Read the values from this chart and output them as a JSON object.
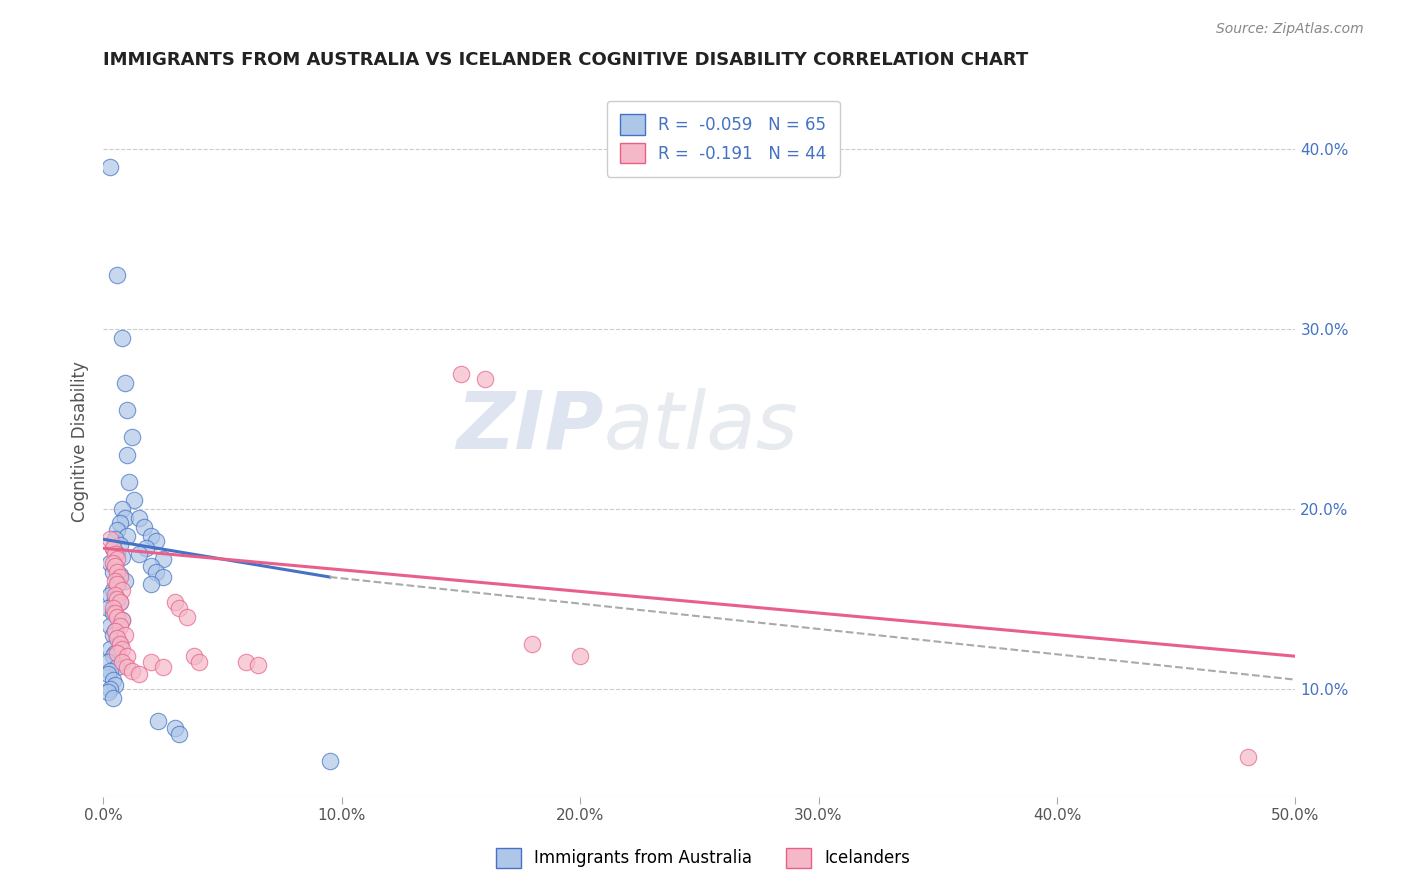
{
  "title": "IMMIGRANTS FROM AUSTRALIA VS ICELANDER COGNITIVE DISABILITY CORRELATION CHART",
  "source": "Source: ZipAtlas.com",
  "ylabel": "Cognitive Disability",
  "xlim": [
    0.0,
    0.5
  ],
  "ylim": [
    0.04,
    0.435
  ],
  "right_yticks": [
    0.1,
    0.2,
    0.3,
    0.4
  ],
  "right_yticklabels": [
    "10.0%",
    "20.0%",
    "30.0%",
    "40.0%"
  ],
  "xticks": [
    0.0,
    0.1,
    0.2,
    0.3,
    0.4,
    0.5
  ],
  "xticklabels": [
    "0.0%",
    "10.0%",
    "20.0%",
    "30.0%",
    "40.0%",
    "50.0%"
  ],
  "legend_r1": "R =  -0.059",
  "legend_n1": "N = 65",
  "legend_r2": "R =  -0.191",
  "legend_n2": "N = 44",
  "color_blue": "#aec6e8",
  "color_pink": "#f5b8c8",
  "line_blue": "#4472c4",
  "line_pink": "#e8608a",
  "line_dashed": "#aaaaaa",
  "watermark_zip": "ZIP",
  "watermark_atlas": "atlas",
  "blue_line_x": [
    0.0,
    0.095
  ],
  "blue_line_y": [
    0.183,
    0.162
  ],
  "pink_line_x": [
    0.0,
    0.5
  ],
  "pink_line_y": [
    0.178,
    0.118
  ],
  "dash_line_x": [
    0.095,
    0.5
  ],
  "dash_line_y": [
    0.162,
    0.105
  ],
  "scatter_blue": [
    [
      0.003,
      0.39
    ],
    [
      0.006,
      0.33
    ],
    [
      0.008,
      0.295
    ],
    [
      0.009,
      0.27
    ],
    [
      0.01,
      0.255
    ],
    [
      0.012,
      0.24
    ],
    [
      0.01,
      0.23
    ],
    [
      0.011,
      0.215
    ],
    [
      0.013,
      0.205
    ],
    [
      0.008,
      0.2
    ],
    [
      0.009,
      0.195
    ],
    [
      0.007,
      0.192
    ],
    [
      0.006,
      0.188
    ],
    [
      0.01,
      0.185
    ],
    [
      0.005,
      0.183
    ],
    [
      0.007,
      0.18
    ],
    [
      0.004,
      0.178
    ],
    [
      0.006,
      0.175
    ],
    [
      0.008,
      0.173
    ],
    [
      0.003,
      0.17
    ],
    [
      0.005,
      0.168
    ],
    [
      0.004,
      0.165
    ],
    [
      0.007,
      0.163
    ],
    [
      0.009,
      0.16
    ],
    [
      0.006,
      0.158
    ],
    [
      0.004,
      0.155
    ],
    [
      0.003,
      0.152
    ],
    [
      0.005,
      0.15
    ],
    [
      0.007,
      0.148
    ],
    [
      0.002,
      0.145
    ],
    [
      0.004,
      0.142
    ],
    [
      0.006,
      0.14
    ],
    [
      0.008,
      0.138
    ],
    [
      0.003,
      0.135
    ],
    [
      0.005,
      0.132
    ],
    [
      0.004,
      0.13
    ],
    [
      0.006,
      0.128
    ],
    [
      0.007,
      0.125
    ],
    [
      0.003,
      0.122
    ],
    [
      0.005,
      0.12
    ],
    [
      0.004,
      0.118
    ],
    [
      0.002,
      0.115
    ],
    [
      0.006,
      0.112
    ],
    [
      0.003,
      0.11
    ],
    [
      0.002,
      0.108
    ],
    [
      0.004,
      0.105
    ],
    [
      0.005,
      0.102
    ],
    [
      0.003,
      0.1
    ],
    [
      0.002,
      0.098
    ],
    [
      0.004,
      0.095
    ],
    [
      0.015,
      0.195
    ],
    [
      0.017,
      0.19
    ],
    [
      0.02,
      0.185
    ],
    [
      0.022,
      0.182
    ],
    [
      0.018,
      0.178
    ],
    [
      0.015,
      0.175
    ],
    [
      0.025,
      0.172
    ],
    [
      0.02,
      0.168
    ],
    [
      0.022,
      0.165
    ],
    [
      0.025,
      0.162
    ],
    [
      0.02,
      0.158
    ],
    [
      0.023,
      0.082
    ],
    [
      0.03,
      0.078
    ],
    [
      0.032,
      0.075
    ],
    [
      0.095,
      0.06
    ]
  ],
  "scatter_pink": [
    [
      0.003,
      0.183
    ],
    [
      0.004,
      0.178
    ],
    [
      0.005,
      0.175
    ],
    [
      0.006,
      0.172
    ],
    [
      0.004,
      0.17
    ],
    [
      0.005,
      0.168
    ],
    [
      0.006,
      0.165
    ],
    [
      0.007,
      0.162
    ],
    [
      0.005,
      0.16
    ],
    [
      0.006,
      0.158
    ],
    [
      0.008,
      0.155
    ],
    [
      0.005,
      0.152
    ],
    [
      0.006,
      0.15
    ],
    [
      0.007,
      0.148
    ],
    [
      0.004,
      0.145
    ],
    [
      0.005,
      0.142
    ],
    [
      0.006,
      0.14
    ],
    [
      0.008,
      0.138
    ],
    [
      0.007,
      0.135
    ],
    [
      0.005,
      0.132
    ],
    [
      0.009,
      0.13
    ],
    [
      0.006,
      0.128
    ],
    [
      0.007,
      0.125
    ],
    [
      0.008,
      0.122
    ],
    [
      0.006,
      0.12
    ],
    [
      0.01,
      0.118
    ],
    [
      0.008,
      0.115
    ],
    [
      0.01,
      0.112
    ],
    [
      0.012,
      0.11
    ],
    [
      0.015,
      0.108
    ],
    [
      0.02,
      0.115
    ],
    [
      0.025,
      0.112
    ],
    [
      0.03,
      0.148
    ],
    [
      0.032,
      0.145
    ],
    [
      0.035,
      0.14
    ],
    [
      0.038,
      0.118
    ],
    [
      0.04,
      0.115
    ],
    [
      0.06,
      0.115
    ],
    [
      0.065,
      0.113
    ],
    [
      0.18,
      0.125
    ],
    [
      0.2,
      0.118
    ],
    [
      0.15,
      0.275
    ],
    [
      0.16,
      0.272
    ],
    [
      0.48,
      0.062
    ]
  ]
}
